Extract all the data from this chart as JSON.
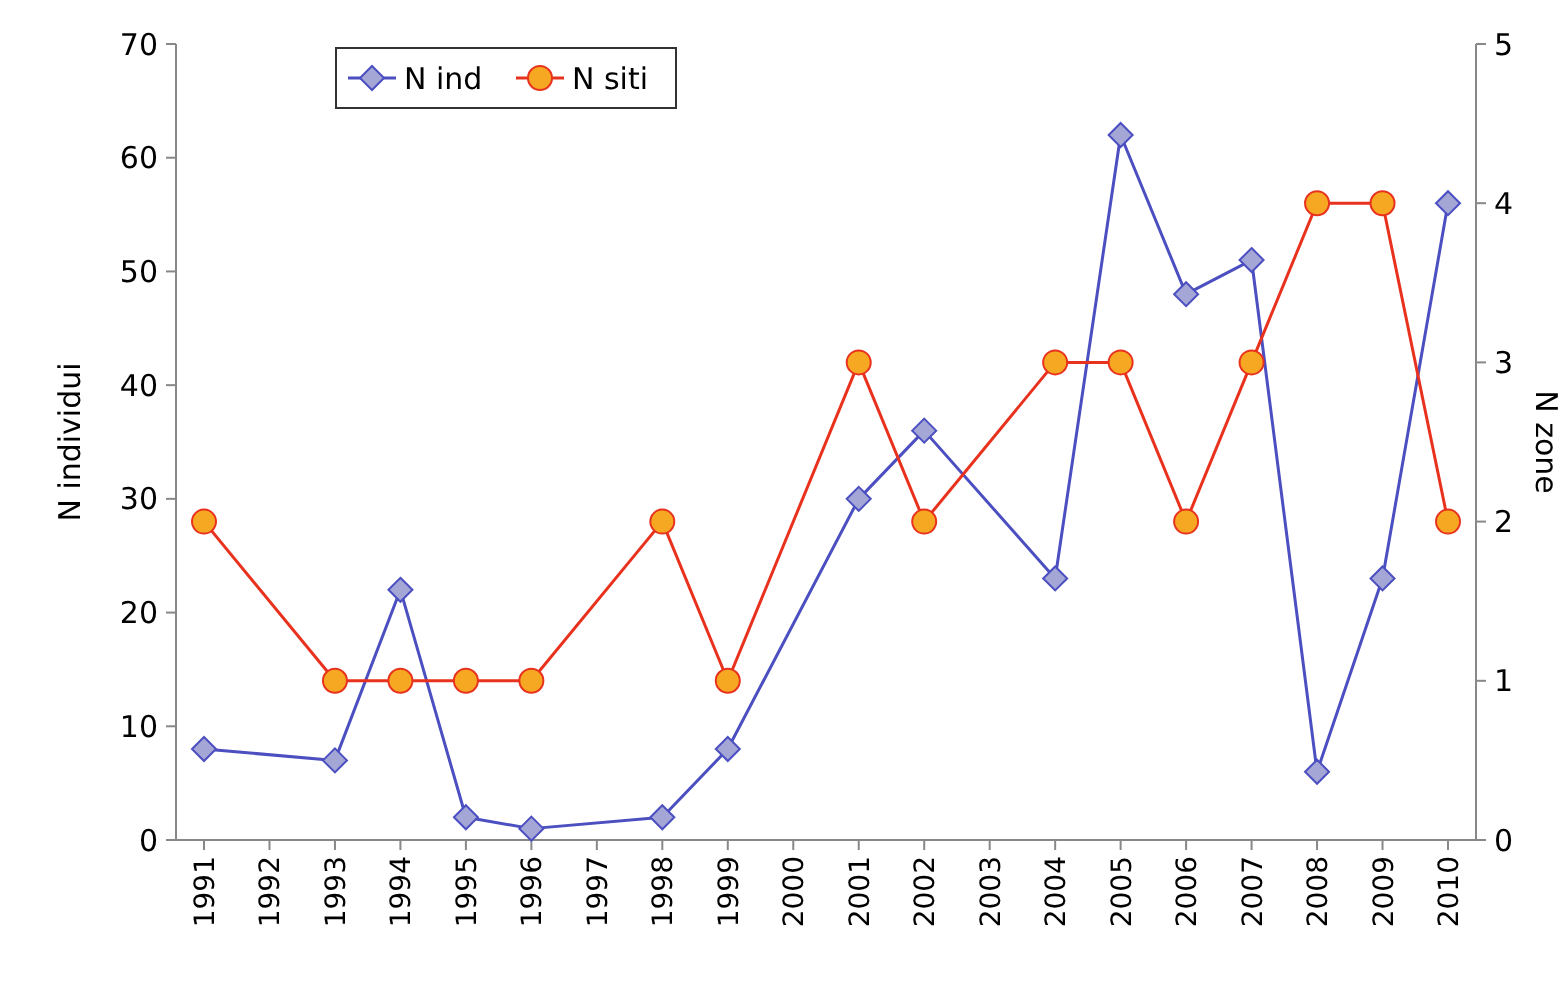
{
  "chart_data": {
    "type": "line",
    "categories": [
      "1991",
      "1992",
      "1993",
      "1994",
      "1995",
      "1996",
      "1997",
      "1998",
      "1999",
      "2000",
      "2001",
      "2002",
      "2003",
      "2004",
      "2005",
      "2006",
      "2007",
      "2008",
      "2009",
      "2010"
    ],
    "ylabel": "N individui",
    "y2label": "N zone",
    "ylim": [
      0,
      70
    ],
    "yticks": [
      0,
      10,
      20,
      30,
      40,
      50,
      60,
      70
    ],
    "y2lim": [
      0,
      5
    ],
    "y2ticks": [
      0,
      1,
      2,
      3,
      4,
      5
    ],
    "grid": false,
    "legend": "top left",
    "series": [
      {
        "name": "N ind",
        "color": "#4b4fc0",
        "marker": "diamond",
        "values": [
          8,
          null,
          7,
          22,
          2,
          1,
          null,
          2,
          8,
          null,
          30,
          36,
          null,
          23,
          62,
          48,
          51,
          6,
          23,
          56
        ]
      },
      {
        "name": "N siti",
        "color": "#e8321e",
        "marker": "circle",
        "axis": "y2",
        "values": [
          2,
          null,
          1,
          1,
          1,
          1,
          null,
          2,
          1,
          null,
          3,
          2,
          null,
          3,
          3,
          2,
          3,
          4,
          4,
          2
        ]
      }
    ]
  }
}
